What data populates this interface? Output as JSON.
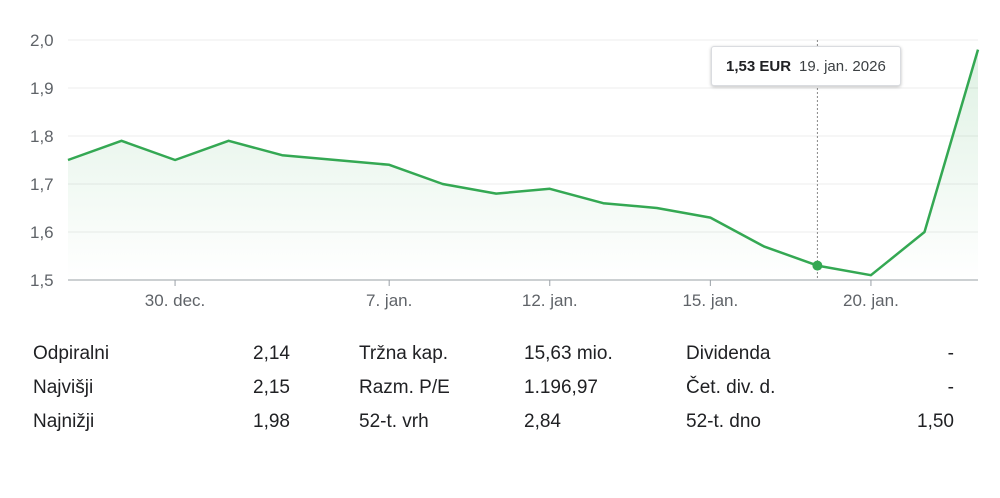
{
  "chart_data": {
    "type": "line",
    "x": [
      "27. dec.",
      "29. dec.",
      "30. dec.",
      "31. dec.",
      "2. jan.",
      "5. jan.",
      "7. jan.",
      "8. jan.",
      "9. jan.",
      "12. jan.",
      "13. jan.",
      "14. jan.",
      "15. jan.",
      "16. jan.",
      "19. jan.",
      "20. jan.",
      "21. jan.",
      "22. jan."
    ],
    "values": [
      1.75,
      1.79,
      1.75,
      1.79,
      1.76,
      1.75,
      1.74,
      1.7,
      1.68,
      1.69,
      1.66,
      1.65,
      1.63,
      1.57,
      1.53,
      1.51,
      1.6,
      1.98
    ],
    "xtick_labels": [
      "30. dec.",
      "7. jan.",
      "12. jan.",
      "15. jan.",
      "20. jan."
    ],
    "ytick_labels": [
      "1,5",
      "1,6",
      "1,7",
      "1,8",
      "1,9",
      "2,0"
    ],
    "ylim": [
      1.5,
      2.0
    ],
    "line_color": "#34a853",
    "hover_index": 14,
    "tooltip": {
      "price": "1,53 EUR",
      "date": "19. jan. 2026"
    }
  },
  "stats": [
    {
      "label": "Odpiralni",
      "value": "2,14"
    },
    {
      "label": "Najvišji",
      "value": "2,15"
    },
    {
      "label": "Najnižji",
      "value": "1,98"
    },
    {
      "label": "Tržna kap.",
      "value": "15,63 mio."
    },
    {
      "label": "Razm. P/E",
      "value": "1.196,97"
    },
    {
      "label": "52-t. vrh",
      "value": "2,84"
    },
    {
      "label": "Dividenda",
      "value": "-"
    },
    {
      "label": "Čet. div. d.",
      "value": "-"
    },
    {
      "label": "52-t. dno",
      "value": "1,50"
    }
  ]
}
